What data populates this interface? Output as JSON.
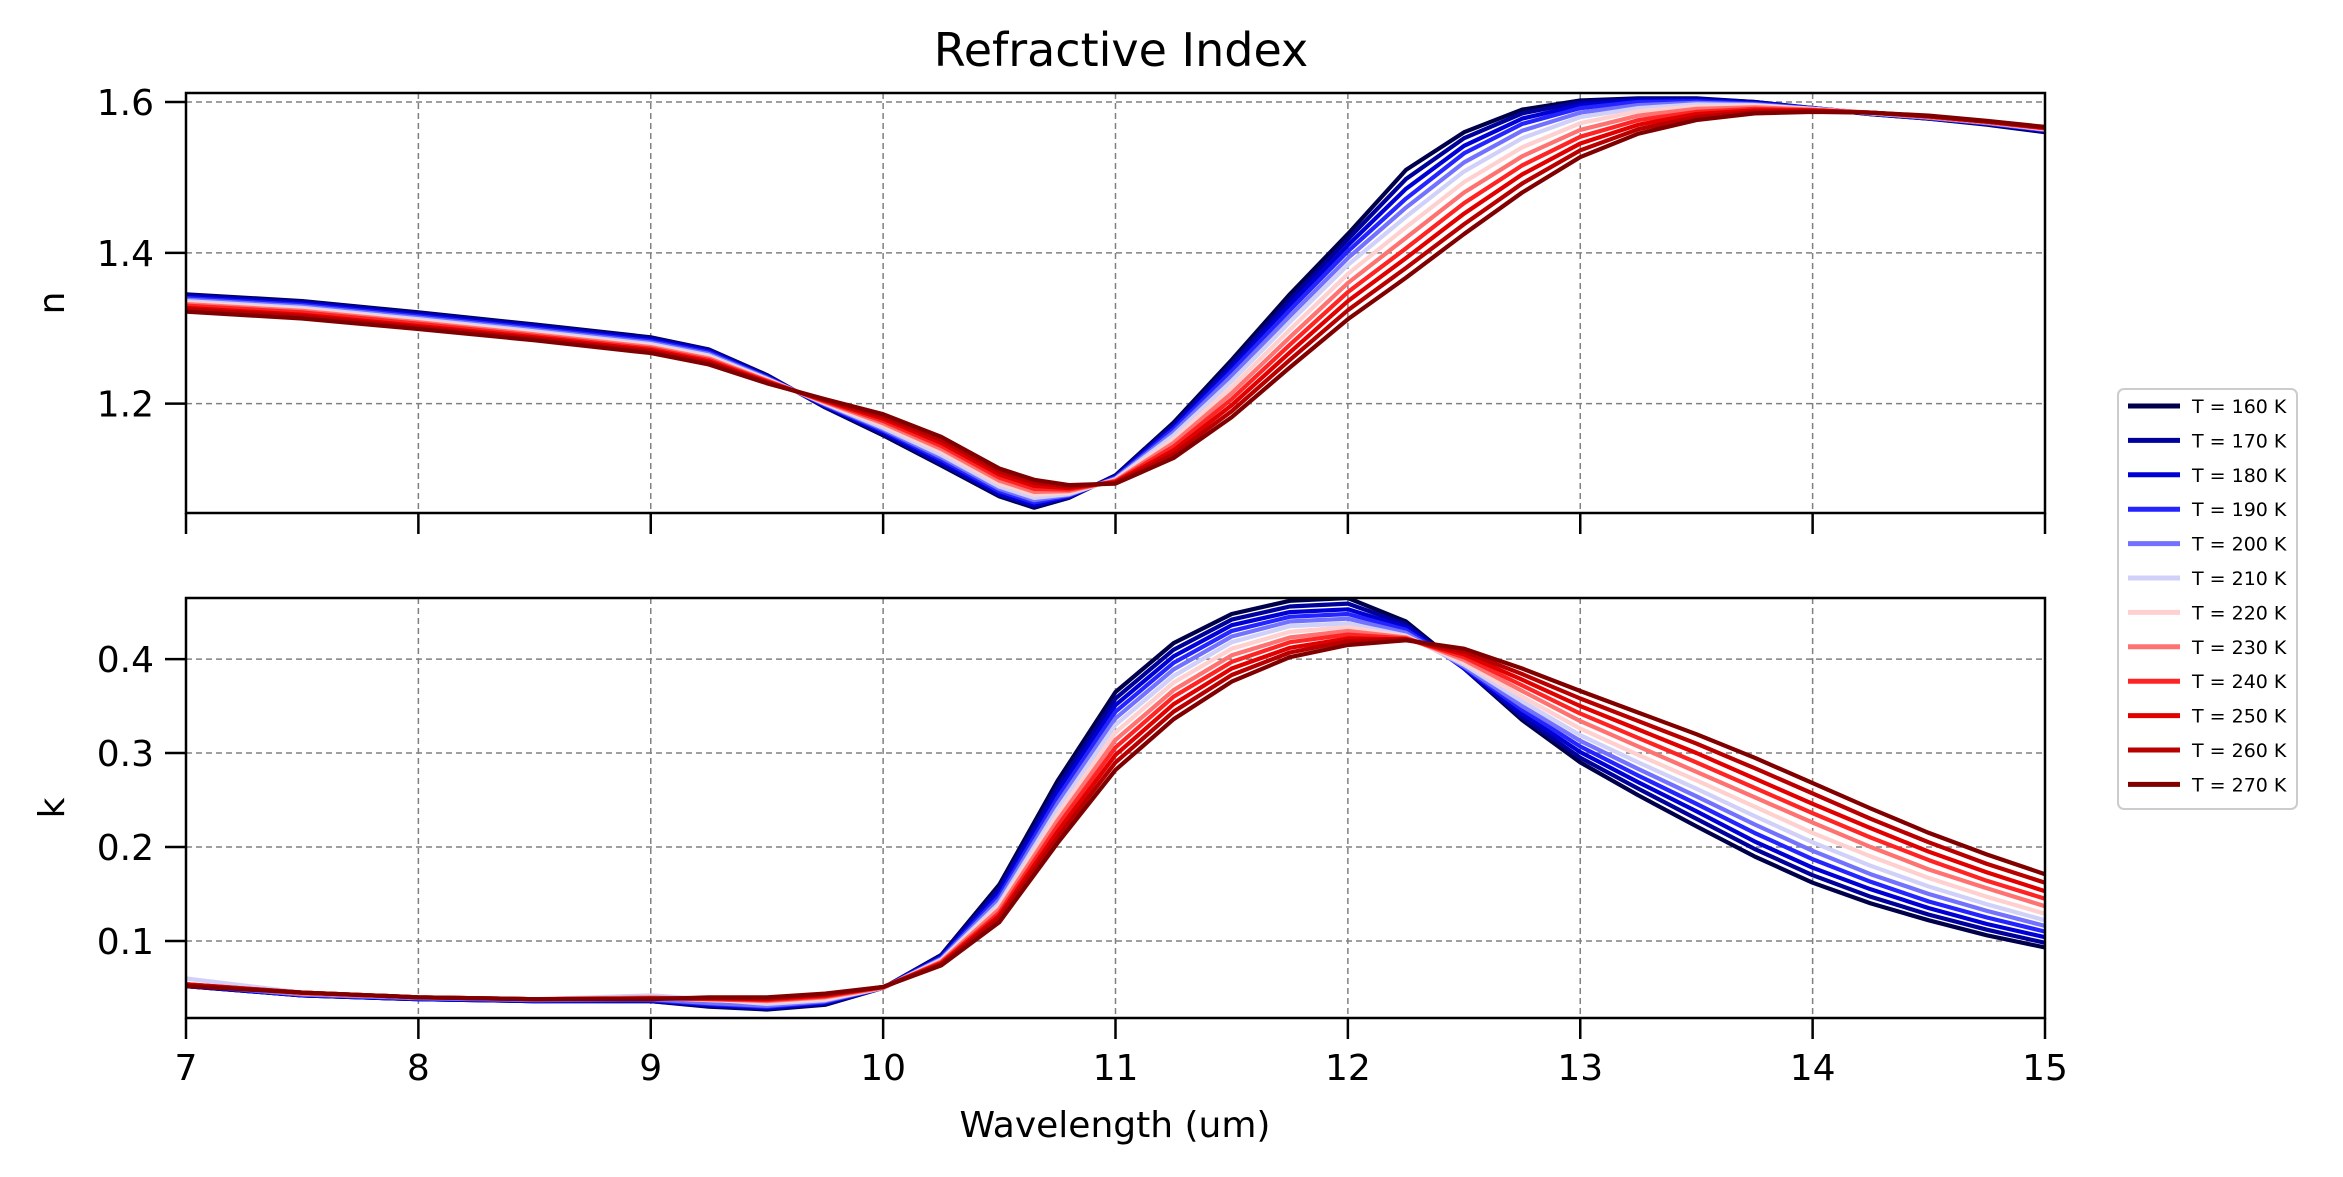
{
  "chart_data": [
    {
      "type": "line",
      "panel": "top",
      "title": "Refractive Index",
      "xlabel": "",
      "ylabel": "n",
      "xlim": [
        7,
        15
      ],
      "ylim": [
        1.055,
        1.612
      ],
      "xticks": [
        7,
        8,
        9,
        10,
        11,
        12,
        13,
        14,
        15
      ],
      "xtick_labels_visible": false,
      "yticks": [
        1.2,
        1.4,
        1.6
      ],
      "ytick_labels": [
        "1.2",
        "1.4",
        "1.6"
      ],
      "grid": true,
      "x": [
        7,
        7.5,
        8,
        8.5,
        9,
        9.25,
        9.5,
        9.75,
        10,
        10.25,
        10.5,
        10.65,
        10.8,
        11,
        11.25,
        11.5,
        11.75,
        12,
        12.25,
        12.5,
        12.75,
        13,
        13.25,
        13.5,
        13.75,
        14,
        14.25,
        14.5,
        14.75,
        15
      ],
      "series": [
        {
          "name": "T = 160 K",
          "color": "#00004a",
          "values": [
            1.345,
            1.336,
            1.321,
            1.305,
            1.288,
            1.272,
            1.238,
            1.195,
            1.158,
            1.118,
            1.077,
            1.062,
            1.075,
            1.105,
            1.175,
            1.258,
            1.345,
            1.425,
            1.51,
            1.56,
            1.59,
            1.602,
            1.605,
            1.605,
            1.6,
            1.592,
            1.584,
            1.578,
            1.57,
            1.56
          ]
        },
        {
          "name": "T = 170 K",
          "color": "#00009a",
          "values": [
            1.344,
            1.335,
            1.32,
            1.304,
            1.287,
            1.271,
            1.237,
            1.196,
            1.16,
            1.12,
            1.079,
            1.064,
            1.076,
            1.104,
            1.172,
            1.253,
            1.338,
            1.418,
            1.498,
            1.552,
            1.585,
            1.6,
            1.604,
            1.604,
            1.6,
            1.592,
            1.584,
            1.578,
            1.571,
            1.561
          ]
        },
        {
          "name": "T = 180 K",
          "color": "#0000d5",
          "values": [
            1.342,
            1.333,
            1.318,
            1.302,
            1.285,
            1.27,
            1.236,
            1.197,
            1.162,
            1.123,
            1.081,
            1.066,
            1.077,
            1.103,
            1.169,
            1.248,
            1.331,
            1.41,
            1.485,
            1.542,
            1.578,
            1.596,
            1.602,
            1.603,
            1.599,
            1.592,
            1.585,
            1.579,
            1.571,
            1.562
          ]
        },
        {
          "name": "T = 190 K",
          "color": "#2424ff",
          "values": [
            1.34,
            1.331,
            1.316,
            1.3,
            1.283,
            1.268,
            1.235,
            1.198,
            1.164,
            1.126,
            1.084,
            1.069,
            1.078,
            1.102,
            1.166,
            1.243,
            1.324,
            1.402,
            1.472,
            1.532,
            1.571,
            1.592,
            1.6,
            1.601,
            1.598,
            1.592,
            1.585,
            1.579,
            1.572,
            1.563
          ]
        },
        {
          "name": "T = 200 K",
          "color": "#7272ff",
          "values": [
            1.338,
            1.329,
            1.314,
            1.298,
            1.281,
            1.266,
            1.234,
            1.199,
            1.166,
            1.129,
            1.087,
            1.072,
            1.079,
            1.101,
            1.162,
            1.237,
            1.316,
            1.393,
            1.46,
            1.52,
            1.562,
            1.586,
            1.596,
            1.599,
            1.597,
            1.591,
            1.585,
            1.579,
            1.572,
            1.563
          ]
        },
        {
          "name": "T = 210 K",
          "color": "#d0d0f8",
          "values": [
            1.336,
            1.327,
            1.312,
            1.296,
            1.279,
            1.264,
            1.233,
            1.2,
            1.168,
            1.132,
            1.09,
            1.075,
            1.08,
            1.1,
            1.158,
            1.23,
            1.308,
            1.384,
            1.448,
            1.508,
            1.552,
            1.58,
            1.592,
            1.597,
            1.596,
            1.591,
            1.585,
            1.58,
            1.573,
            1.564
          ]
        },
        {
          "name": "T = 220 K",
          "color": "#ffd0d0",
          "values": [
            1.334,
            1.325,
            1.31,
            1.294,
            1.277,
            1.262,
            1.232,
            1.201,
            1.171,
            1.136,
            1.094,
            1.079,
            1.082,
            1.099,
            1.153,
            1.222,
            1.298,
            1.372,
            1.434,
            1.494,
            1.54,
            1.572,
            1.588,
            1.594,
            1.595,
            1.591,
            1.586,
            1.58,
            1.573,
            1.564
          ]
        },
        {
          "name": "T = 230 K",
          "color": "#ff7272",
          "values": [
            1.332,
            1.323,
            1.308,
            1.292,
            1.275,
            1.26,
            1.231,
            1.202,
            1.174,
            1.14,
            1.098,
            1.083,
            1.084,
            1.098,
            1.148,
            1.214,
            1.288,
            1.36,
            1.42,
            1.48,
            1.528,
            1.563,
            1.582,
            1.591,
            1.593,
            1.59,
            1.586,
            1.58,
            1.573,
            1.565
          ]
        },
        {
          "name": "T = 240 K",
          "color": "#ff2424",
          "values": [
            1.33,
            1.321,
            1.306,
            1.29,
            1.273,
            1.258,
            1.23,
            1.203,
            1.177,
            1.144,
            1.102,
            1.087,
            1.086,
            1.097,
            1.143,
            1.206,
            1.278,
            1.348,
            1.406,
            1.466,
            1.516,
            1.554,
            1.576,
            1.587,
            1.591,
            1.589,
            1.586,
            1.581,
            1.574,
            1.565
          ]
        },
        {
          "name": "T = 250 K",
          "color": "#e00000",
          "values": [
            1.327,
            1.318,
            1.303,
            1.288,
            1.271,
            1.256,
            1.229,
            1.204,
            1.18,
            1.148,
            1.106,
            1.091,
            1.088,
            1.096,
            1.138,
            1.198,
            1.268,
            1.336,
            1.393,
            1.452,
            1.504,
            1.545,
            1.57,
            1.584,
            1.589,
            1.589,
            1.586,
            1.581,
            1.574,
            1.566
          ]
        },
        {
          "name": "T = 260 K",
          "color": "#b80000",
          "values": [
            1.325,
            1.316,
            1.301,
            1.286,
            1.269,
            1.254,
            1.228,
            1.205,
            1.183,
            1.152,
            1.11,
            1.095,
            1.09,
            1.095,
            1.133,
            1.19,
            1.258,
            1.324,
            1.38,
            1.438,
            1.492,
            1.536,
            1.564,
            1.58,
            1.587,
            1.588,
            1.586,
            1.581,
            1.574,
            1.566
          ]
        },
        {
          "name": "T = 270 K",
          "color": "#800000",
          "values": [
            1.322,
            1.313,
            1.299,
            1.284,
            1.267,
            1.252,
            1.227,
            1.206,
            1.186,
            1.156,
            1.114,
            1.099,
            1.092,
            1.094,
            1.128,
            1.182,
            1.248,
            1.312,
            1.367,
            1.425,
            1.48,
            1.527,
            1.558,
            1.576,
            1.585,
            1.587,
            1.586,
            1.582,
            1.575,
            1.567
          ]
        }
      ]
    },
    {
      "type": "line",
      "panel": "bottom",
      "title": "",
      "xlabel": "Wavelength (um)",
      "ylabel": "k",
      "xlim": [
        7,
        15
      ],
      "ylim": [
        0.018,
        0.465
      ],
      "xticks": [
        7,
        8,
        9,
        10,
        11,
        12,
        13,
        14,
        15
      ],
      "xtick_labels": [
        "7",
        "8",
        "9",
        "10",
        "11",
        "12",
        "13",
        "14",
        "15"
      ],
      "yticks": [
        0.1,
        0.2,
        0.3,
        0.4
      ],
      "ytick_labels": [
        "0.1",
        "0.2",
        "0.3",
        "0.4"
      ],
      "grid": true,
      "x": [
        7,
        7.5,
        8,
        8.5,
        9,
        9.25,
        9.5,
        9.75,
        10,
        10.25,
        10.5,
        10.75,
        11,
        11.25,
        11.5,
        11.75,
        12,
        12.25,
        12.5,
        12.75,
        13,
        13.25,
        13.5,
        13.75,
        14,
        14.25,
        14.5,
        14.75,
        15
      ],
      "series": [
        {
          "name": "T = 160 K",
          "color": "#00004a",
          "values": [
            0.052,
            0.042,
            0.038,
            0.036,
            0.036,
            0.03,
            0.027,
            0.032,
            0.05,
            0.085,
            0.16,
            0.27,
            0.365,
            0.417,
            0.448,
            0.462,
            0.465,
            0.44,
            0.39,
            0.335,
            0.29,
            0.255,
            0.222,
            0.19,
            0.162,
            0.14,
            0.122,
            0.106,
            0.093
          ]
        },
        {
          "name": "T = 170 K",
          "color": "#00009a",
          "values": [
            0.052,
            0.042,
            0.038,
            0.036,
            0.036,
            0.031,
            0.028,
            0.033,
            0.05,
            0.084,
            0.156,
            0.264,
            0.358,
            0.41,
            0.442,
            0.456,
            0.459,
            0.437,
            0.39,
            0.338,
            0.295,
            0.262,
            0.23,
            0.198,
            0.17,
            0.147,
            0.128,
            0.112,
            0.098
          ]
        },
        {
          "name": "T = 180 K",
          "color": "#0000d5",
          "values": [
            0.052,
            0.042,
            0.038,
            0.036,
            0.037,
            0.032,
            0.029,
            0.034,
            0.05,
            0.083,
            0.152,
            0.258,
            0.351,
            0.403,
            0.436,
            0.45,
            0.453,
            0.434,
            0.39,
            0.342,
            0.301,
            0.269,
            0.238,
            0.206,
            0.178,
            0.155,
            0.135,
            0.118,
            0.104
          ]
        },
        {
          "name": "T = 190 K",
          "color": "#2424ff",
          "values": [
            0.053,
            0.043,
            0.039,
            0.037,
            0.037,
            0.033,
            0.03,
            0.035,
            0.05,
            0.082,
            0.148,
            0.252,
            0.344,
            0.396,
            0.43,
            0.445,
            0.448,
            0.431,
            0.391,
            0.346,
            0.307,
            0.276,
            0.246,
            0.215,
            0.187,
            0.163,
            0.142,
            0.125,
            0.11
          ]
        },
        {
          "name": "T = 200 K",
          "color": "#7272ff",
          "values": [
            0.053,
            0.043,
            0.039,
            0.037,
            0.038,
            0.034,
            0.031,
            0.036,
            0.05,
            0.081,
            0.144,
            0.246,
            0.337,
            0.389,
            0.424,
            0.44,
            0.443,
            0.428,
            0.392,
            0.35,
            0.313,
            0.283,
            0.254,
            0.224,
            0.196,
            0.171,
            0.15,
            0.132,
            0.116
          ]
        },
        {
          "name": "T = 210 K",
          "color": "#d0d0f8",
          "values": [
            0.06,
            0.045,
            0.04,
            0.038,
            0.042,
            0.038,
            0.033,
            0.037,
            0.05,
            0.08,
            0.14,
            0.24,
            0.33,
            0.382,
            0.418,
            0.435,
            0.438,
            0.425,
            0.394,
            0.355,
            0.319,
            0.29,
            0.262,
            0.233,
            0.205,
            0.18,
            0.158,
            0.139,
            0.122
          ]
        },
        {
          "name": "T = 220 K",
          "color": "#ffd0d0",
          "values": [
            0.054,
            0.044,
            0.04,
            0.038,
            0.04,
            0.037,
            0.035,
            0.038,
            0.05,
            0.079,
            0.137,
            0.234,
            0.322,
            0.375,
            0.411,
            0.429,
            0.434,
            0.424,
            0.396,
            0.36,
            0.326,
            0.298,
            0.271,
            0.243,
            0.215,
            0.19,
            0.167,
            0.147,
            0.129
          ]
        },
        {
          "name": "T = 230 K",
          "color": "#ff7272",
          "values": [
            0.054,
            0.044,
            0.04,
            0.038,
            0.04,
            0.038,
            0.036,
            0.04,
            0.05,
            0.078,
            0.134,
            0.228,
            0.314,
            0.367,
            0.404,
            0.423,
            0.43,
            0.423,
            0.399,
            0.366,
            0.334,
            0.307,
            0.28,
            0.253,
            0.226,
            0.2,
            0.176,
            0.156,
            0.137
          ]
        },
        {
          "name": "T = 240 K",
          "color": "#ff2424",
          "values": [
            0.054,
            0.045,
            0.04,
            0.038,
            0.039,
            0.038,
            0.037,
            0.041,
            0.051,
            0.077,
            0.13,
            0.222,
            0.306,
            0.36,
            0.397,
            0.418,
            0.426,
            0.422,
            0.402,
            0.372,
            0.342,
            0.316,
            0.29,
            0.263,
            0.236,
            0.21,
            0.186,
            0.164,
            0.145
          ]
        },
        {
          "name": "T = 250 K",
          "color": "#e00000",
          "values": [
            0.054,
            0.045,
            0.04,
            0.038,
            0.039,
            0.039,
            0.038,
            0.042,
            0.051,
            0.076,
            0.127,
            0.216,
            0.298,
            0.352,
            0.39,
            0.412,
            0.422,
            0.421,
            0.405,
            0.378,
            0.35,
            0.325,
            0.3,
            0.273,
            0.246,
            0.22,
            0.195,
            0.173,
            0.153
          ]
        },
        {
          "name": "T = 260 K",
          "color": "#b80000",
          "values": [
            0.053,
            0.045,
            0.04,
            0.038,
            0.039,
            0.039,
            0.039,
            0.043,
            0.051,
            0.075,
            0.124,
            0.21,
            0.29,
            0.344,
            0.383,
            0.407,
            0.419,
            0.421,
            0.408,
            0.384,
            0.358,
            0.334,
            0.31,
            0.284,
            0.257,
            0.23,
            0.205,
            0.182,
            0.162
          ]
        },
        {
          "name": "T = 270 K",
          "color": "#800000",
          "values": [
            0.052,
            0.045,
            0.04,
            0.038,
            0.038,
            0.04,
            0.04,
            0.044,
            0.051,
            0.074,
            0.12,
            0.204,
            0.282,
            0.336,
            0.376,
            0.402,
            0.415,
            0.42,
            0.411,
            0.39,
            0.366,
            0.343,
            0.32,
            0.295,
            0.268,
            0.241,
            0.215,
            0.192,
            0.171
          ]
        }
      ]
    }
  ]
}
